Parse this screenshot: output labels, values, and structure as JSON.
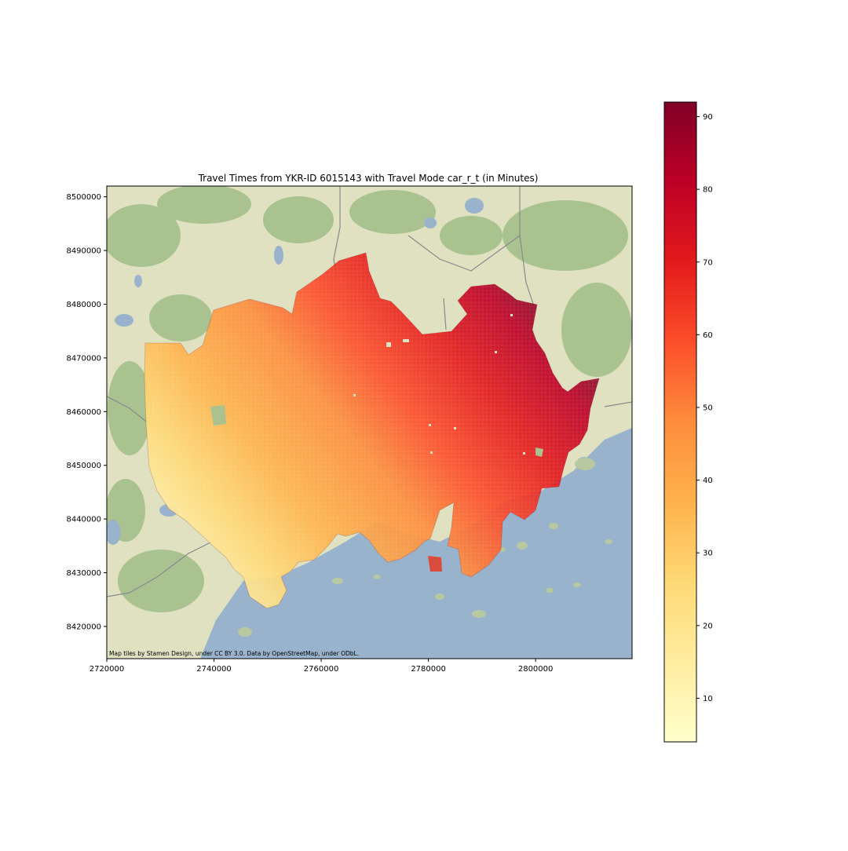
{
  "figure": {
    "title": "Travel Times from YKR-ID 6015143 with Travel Mode car_r_t (in Minutes)",
    "attribution": "Map tiles by Stamen Design, under CC BY 3.0. Data by OpenStreetMap, under ODbL."
  },
  "chart_data": {
    "type": "heatmap",
    "title": "Travel Times from YKR-ID 6015143 with Travel Mode car_r_t (in Minutes)",
    "xlabel": "",
    "ylabel": "",
    "xlim": [
      2720000,
      2818000
    ],
    "ylim": [
      8414000,
      8502000
    ],
    "x_ticks": [
      2720000,
      2740000,
      2760000,
      2780000,
      2800000
    ],
    "y_ticks": [
      8420000,
      8430000,
      8440000,
      8450000,
      8460000,
      8470000,
      8480000,
      8490000,
      8500000
    ],
    "x_tick_labels": [
      "2720000",
      "2740000",
      "2760000",
      "2780000",
      "2800000"
    ],
    "y_tick_labels": [
      "8420000",
      "8430000",
      "8440000",
      "8450000",
      "8460000",
      "8470000",
      "8480000",
      "8490000",
      "8500000"
    ],
    "colorbar": {
      "colormap": "YlOrRd",
      "range": [
        4,
        92
      ],
      "ticks": [
        10,
        20,
        30,
        40,
        50,
        60,
        70,
        80,
        90
      ],
      "tick_labels": [
        "10",
        "20",
        "30",
        "40",
        "50",
        "60",
        "70",
        "80",
        "90"
      ]
    },
    "grid": false,
    "legend": "colorbar-right",
    "colors": {
      "land": "#dfe1c1",
      "forest": "#a9c290",
      "water": "#99b3cc",
      "roads": "#8a8a8a"
    }
  }
}
